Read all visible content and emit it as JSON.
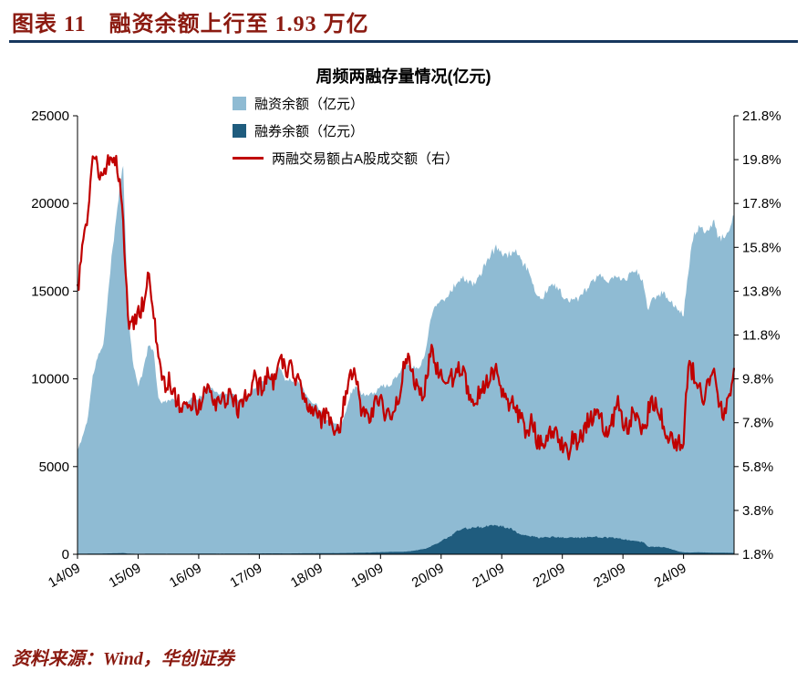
{
  "header": {
    "title": "图表 11　融资余额上行至 1.93 万亿"
  },
  "footer": {
    "source": "资料来源：Wind，华创证券"
  },
  "colors": {
    "accent_red": "#8B1A10",
    "rule_navy": "#17375E"
  },
  "chart_data": {
    "type": "area",
    "title": "周频两融存量情况(亿元)",
    "x_tick_labels": [
      "14/09",
      "15/09",
      "16/09",
      "17/09",
      "18/09",
      "19/09",
      "20/09",
      "21/09",
      "22/09",
      "23/09",
      "24/09"
    ],
    "x_tick_month_indices": [
      0,
      12,
      24,
      36,
      48,
      60,
      72,
      84,
      96,
      108,
      120
    ],
    "left_axis": {
      "min": 0,
      "max": 25000,
      "ticks": [
        "0",
        "5000",
        "10000",
        "15000",
        "20000",
        "25000"
      ]
    },
    "right_axis": {
      "min": 1.8,
      "max": 21.8,
      "ticks": [
        "1.8%",
        "3.8%",
        "5.8%",
        "7.8%",
        "9.8%",
        "11.8%",
        "13.8%",
        "15.8%",
        "17.8%",
        "19.8%",
        "21.8%"
      ]
    },
    "weekly_noise": {
      "financing_rel": 0.013,
      "lending_rel": 0.05,
      "ratio_abs": 0.45
    },
    "series": [
      {
        "name": "融资余额（亿元）",
        "type": "area",
        "axis": "left",
        "color": "#8FBBD3",
        "monthly_values": [
          5900,
          6700,
          7700,
          10100,
          11300,
          11700,
          14600,
          17600,
          20100,
          22400,
          13900,
          10800,
          9600,
          10400,
          11900,
          11700,
          8900,
          8600,
          8800,
          8900,
          8300,
          8500,
          8800,
          8900,
          8900,
          9200,
          9700,
          9400,
          9200,
          9000,
          9300,
          9100,
          8800,
          8800,
          9000,
          9500,
          9800,
          9900,
          10200,
          10250,
          10700,
          10000,
          10000,
          9800,
          9800,
          9200,
          8800,
          8600,
          8300,
          7700,
          7700,
          7500,
          7300,
          8000,
          9100,
          9600,
          9200,
          9100,
          9100,
          9200,
          9600,
          9600,
          9700,
          10100,
          10500,
          10900,
          10700,
          10600,
          10800,
          11600,
          13600,
          14300,
          14400,
          14600,
          15100,
          15400,
          15800,
          15600,
          15400,
          15600,
          16100,
          16600,
          17200,
          17500,
          17200,
          17000,
          17200,
          17200,
          16600,
          16300,
          15600,
          14700,
          14600,
          15100,
          15300,
          15300,
          14800,
          14400,
          14500,
          14500,
          14800,
          15200,
          15500,
          15800,
          15800,
          15600,
          15700,
          15800,
          15600,
          15800,
          16200,
          16000,
          15500,
          13900,
          14600,
          14800,
          14900,
          14600,
          14200,
          13900,
          13700,
          16300,
          18200,
          18600,
          18400,
          18700,
          19000,
          17900,
          18100,
          18500,
          19300
        ]
      },
      {
        "name": "融券余额（亿元）",
        "type": "area",
        "axis": "left",
        "color": "#1F5C7E",
        "monthly_values": [
          30,
          32,
          35,
          40,
          42,
          45,
          50,
          55,
          60,
          75,
          40,
          28,
          25,
          26,
          30,
          30,
          30,
          28,
          30,
          32,
          30,
          30,
          32,
          34,
          35,
          36,
          38,
          36,
          35,
          34,
          36,
          38,
          40,
          42,
          44,
          46,
          48,
          50,
          52,
          50,
          50,
          48,
          50,
          52,
          54,
          56,
          58,
          60,
          62,
          64,
          68,
          70,
          72,
          75,
          80,
          85,
          90,
          95,
          100,
          110,
          120,
          130,
          140,
          140,
          140,
          150,
          180,
          220,
          280,
          320,
          450,
          600,
          750,
          900,
          1050,
          1300,
          1400,
          1480,
          1500,
          1520,
          1550,
          1600,
          1700,
          1680,
          1600,
          1520,
          1450,
          1200,
          1100,
          1060,
          1020,
          960,
          950,
          960,
          980,
          970,
          950,
          930,
          960,
          950,
          960,
          980,
          1000,
          990,
          970,
          950,
          930,
          900,
          850,
          800,
          760,
          720,
          700,
          430,
          420,
          430,
          410,
          350,
          260,
          160,
          110,
          100,
          110,
          110,
          105,
          100,
          95,
          92,
          88,
          84,
          80
        ]
      },
      {
        "name": "两融交易额占A股成交额（右）",
        "type": "line",
        "axis": "right",
        "color": "#C00000",
        "monthly_values": [
          13.9,
          15.6,
          17.4,
          19.8,
          19.5,
          18.6,
          19.9,
          19.4,
          19.6,
          16.8,
          12.6,
          12.2,
          12.8,
          13.2,
          14.4,
          13.0,
          11.0,
          9.4,
          9.8,
          9.1,
          8.6,
          8.8,
          8.4,
          8.8,
          8.4,
          9.0,
          9.6,
          8.8,
          8.6,
          8.8,
          9.2,
          8.8,
          8.4,
          8.8,
          9.2,
          9.8,
          9.4,
          9.6,
          10.2,
          9.6,
          10.8,
          10.2,
          10.4,
          9.8,
          9.6,
          8.8,
          8.4,
          8.2,
          7.9,
          8.2,
          8.0,
          7.6,
          7.6,
          9.0,
          10.3,
          9.9,
          8.6,
          8.1,
          8.0,
          8.6,
          8.8,
          8.2,
          8.0,
          8.4,
          9.4,
          11.0,
          10.4,
          9.4,
          9.0,
          9.6,
          11.4,
          10.4,
          10.0,
          9.6,
          9.8,
          10.0,
          10.3,
          9.6,
          9.0,
          8.9,
          9.4,
          9.7,
          10.0,
          10.1,
          9.4,
          8.5,
          8.8,
          8.4,
          7.8,
          7.4,
          7.9,
          7.0,
          6.8,
          7.3,
          7.6,
          7.2,
          6.7,
          6.4,
          7.0,
          6.8,
          7.2,
          7.9,
          8.1,
          8.5,
          7.8,
          7.4,
          7.8,
          8.6,
          7.9,
          7.6,
          8.2,
          7.8,
          7.4,
          8.3,
          8.8,
          8.3,
          7.8,
          7.2,
          7.0,
          6.8,
          7.1,
          10.6,
          10.0,
          9.4,
          8.9,
          9.6,
          9.9,
          8.6,
          8.3,
          8.8,
          10.3
        ]
      }
    ]
  }
}
